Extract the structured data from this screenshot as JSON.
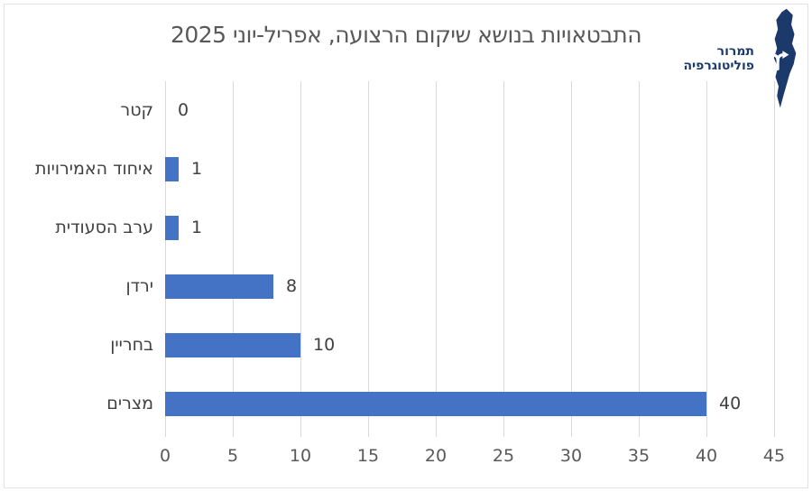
{
  "logo": {
    "line1": "תמרור",
    "line2": "פוליטוגרפיה",
    "map_color": "#1b3a6b",
    "icon_color": "#ffffff"
  },
  "chart_data": {
    "type": "bar",
    "orientation": "horizontal",
    "title": "התבטאויות בנושא שיקום הרצועה, אפריל-יוני 2025",
    "categories": [
      "קטר",
      "איחוד האמירויות",
      "ערב הסעודית",
      "ירדן",
      "בחריין",
      "מצרים"
    ],
    "values": [
      0,
      1,
      1,
      8,
      10,
      40
    ],
    "x_ticks": [
      0,
      5,
      10,
      15,
      20,
      25,
      30,
      35,
      40,
      45
    ],
    "xlim": [
      0,
      45
    ],
    "grid": true,
    "legend": false,
    "value_labels": true,
    "bar_color": "#4472c4",
    "gridline_color": "#d9d9d9",
    "title_color": "#595959",
    "label_color": "#404040"
  }
}
